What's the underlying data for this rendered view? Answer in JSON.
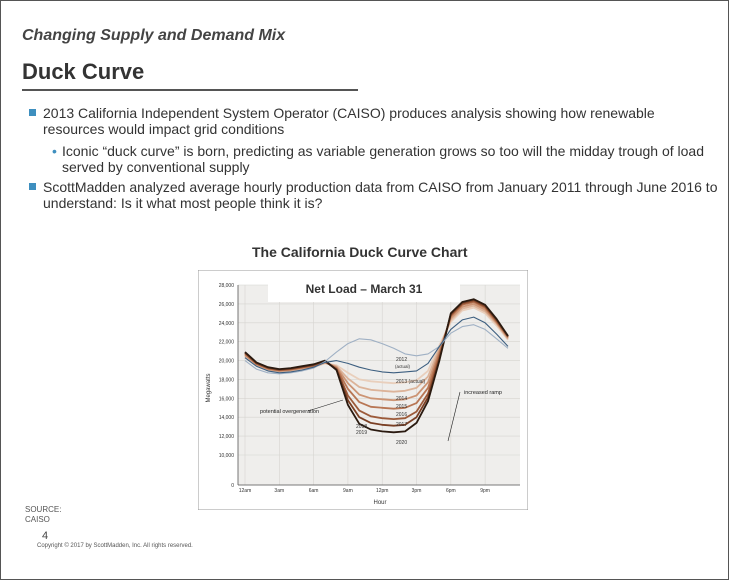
{
  "slide": {
    "subtitle": "Changing Supply and Demand Mix",
    "title": "Duck Curve",
    "bullets": [
      {
        "text": "2013 California Independent System Operator (CAISO) produces analysis showing how renewable resources would impact grid conditions",
        "sub": [
          "Iconic “duck curve” is born, predicting as variable generation grows so too will the midday trough of load served by conventional supply"
        ]
      },
      {
        "text": "ScottMadden analyzed average hourly production data from CAISO from January 2011 through June 2016 to understand: Is it what most people think it is?",
        "sub": []
      }
    ],
    "chart_caption": "The California Duck Curve Chart",
    "source_label": "SOURCE:",
    "source_value": "CAISO",
    "page_number": "4",
    "copyright": "Copyright © 2017 by ScottMadden, Inc. All rights reserved."
  },
  "chart_data": {
    "type": "line",
    "title": "Net Load – March 31",
    "xlabel": "Hour",
    "ylabel": "Megawatts",
    "x": [
      0,
      1,
      2,
      3,
      4,
      5,
      6,
      7,
      8,
      9,
      10,
      11,
      12,
      13,
      14,
      15,
      16,
      17,
      18,
      19,
      20,
      21,
      22,
      23
    ],
    "x_ticks": [
      {
        "hour": 0,
        "label": "12am"
      },
      {
        "hour": 3,
        "label": "3am"
      },
      {
        "hour": 6,
        "label": "6am"
      },
      {
        "hour": 9,
        "label": "9am"
      },
      {
        "hour": 12,
        "label": "12pm"
      },
      {
        "hour": 15,
        "label": "3pm"
      },
      {
        "hour": 18,
        "label": "6pm"
      },
      {
        "hour": 21,
        "label": "9pm"
      }
    ],
    "y_ticks": [
      0,
      10000,
      12000,
      14000,
      16000,
      18000,
      20000,
      22000,
      24000,
      26000,
      28000
    ],
    "y_tick_labels": [
      "0",
      "10,000",
      "12,000",
      "14,000",
      "16,000",
      "18,000",
      "20,000",
      "22,000",
      "24,000",
      "26,000",
      "28,000"
    ],
    "ylim": [
      0,
      28000
    ],
    "grid": true,
    "series": [
      {
        "name": "2012 (actual)",
        "color": "#9fb0c4",
        "values": [
          20000,
          19100,
          18700,
          18600,
          18700,
          18900,
          19200,
          19900,
          20900,
          21800,
          22300,
          22200,
          21800,
          21300,
          20700,
          20500,
          20700,
          21500,
          22900,
          23600,
          23800,
          23300,
          22300,
          21300
        ]
      },
      {
        "name": "2013 (actual)",
        "color": "#3d5f80",
        "values": [
          20300,
          19400,
          18900,
          18700,
          18800,
          19000,
          19300,
          19800,
          20000,
          19700,
          19300,
          19000,
          18800,
          18700,
          18800,
          18900,
          19700,
          21500,
          23300,
          24300,
          24600,
          24000,
          22800,
          21500
        ]
      },
      {
        "name": "2014",
        "color": "#e9cfbc",
        "values": [
          20400,
          19500,
          19000,
          18800,
          18900,
          19100,
          19300,
          19700,
          19500,
          18700,
          18000,
          17800,
          17700,
          17600,
          17700,
          17900,
          18900,
          21600,
          24100,
          25300,
          25600,
          25000,
          23700,
          22200
        ]
      },
      {
        "name": "2015",
        "color": "#dcb399",
        "values": [
          20500,
          19550,
          19050,
          18850,
          18950,
          19150,
          19350,
          19750,
          19400,
          18100,
          17200,
          16900,
          16800,
          16700,
          16800,
          17100,
          18300,
          21300,
          24300,
          25500,
          25800,
          25200,
          23900,
          22300
        ]
      },
      {
        "name": "2016",
        "color": "#cc9474",
        "values": [
          20600,
          19600,
          19100,
          18900,
          19000,
          19200,
          19400,
          19800,
          19300,
          17600,
          16400,
          16000,
          15900,
          15800,
          15900,
          16300,
          17700,
          21000,
          24500,
          25700,
          26000,
          25400,
          24000,
          22400
        ]
      },
      {
        "name": "2017",
        "color": "#b87654",
        "values": [
          20700,
          19650,
          19150,
          18950,
          19050,
          19250,
          19450,
          19850,
          19200,
          17000,
          15600,
          15100,
          15000,
          14900,
          15000,
          15500,
          17100,
          20700,
          24700,
          25900,
          26200,
          25600,
          24100,
          22500
        ]
      },
      {
        "name": "2018",
        "color": "#9c5a3a",
        "values": [
          20800,
          19700,
          19200,
          19000,
          19100,
          19300,
          19500,
          19900,
          19100,
          16300,
          14700,
          14100,
          13900,
          13800,
          13900,
          14600,
          16500,
          20400,
          24800,
          26000,
          26300,
          25700,
          24200,
          22500
        ]
      },
      {
        "name": "2019",
        "color": "#7a3f24",
        "values": [
          20850,
          19750,
          19250,
          19050,
          19150,
          19350,
          19550,
          19950,
          19050,
          15800,
          14000,
          13400,
          13200,
          13100,
          13200,
          14000,
          16100,
          20200,
          24900,
          26100,
          26400,
          25800,
          24300,
          22600
        ]
      },
      {
        "name": "2020",
        "color": "#2a1a10",
        "values": [
          20900,
          19800,
          19300,
          19100,
          19200,
          19400,
          19600,
          20000,
          19000,
          15300,
          13300,
          12700,
          12500,
          12400,
          12500,
          13400,
          15700,
          20000,
          25000,
          26200,
          26500,
          25900,
          24400,
          22600
        ]
      }
    ],
    "annotations": [
      "potential overgeneration",
      "increased ramp"
    ],
    "year_labels": [
      "2012",
      "(actual)",
      "2013 (actual)",
      "2014",
      "2015",
      "2016",
      "2017",
      "2018",
      "2019",
      "2020"
    ]
  }
}
